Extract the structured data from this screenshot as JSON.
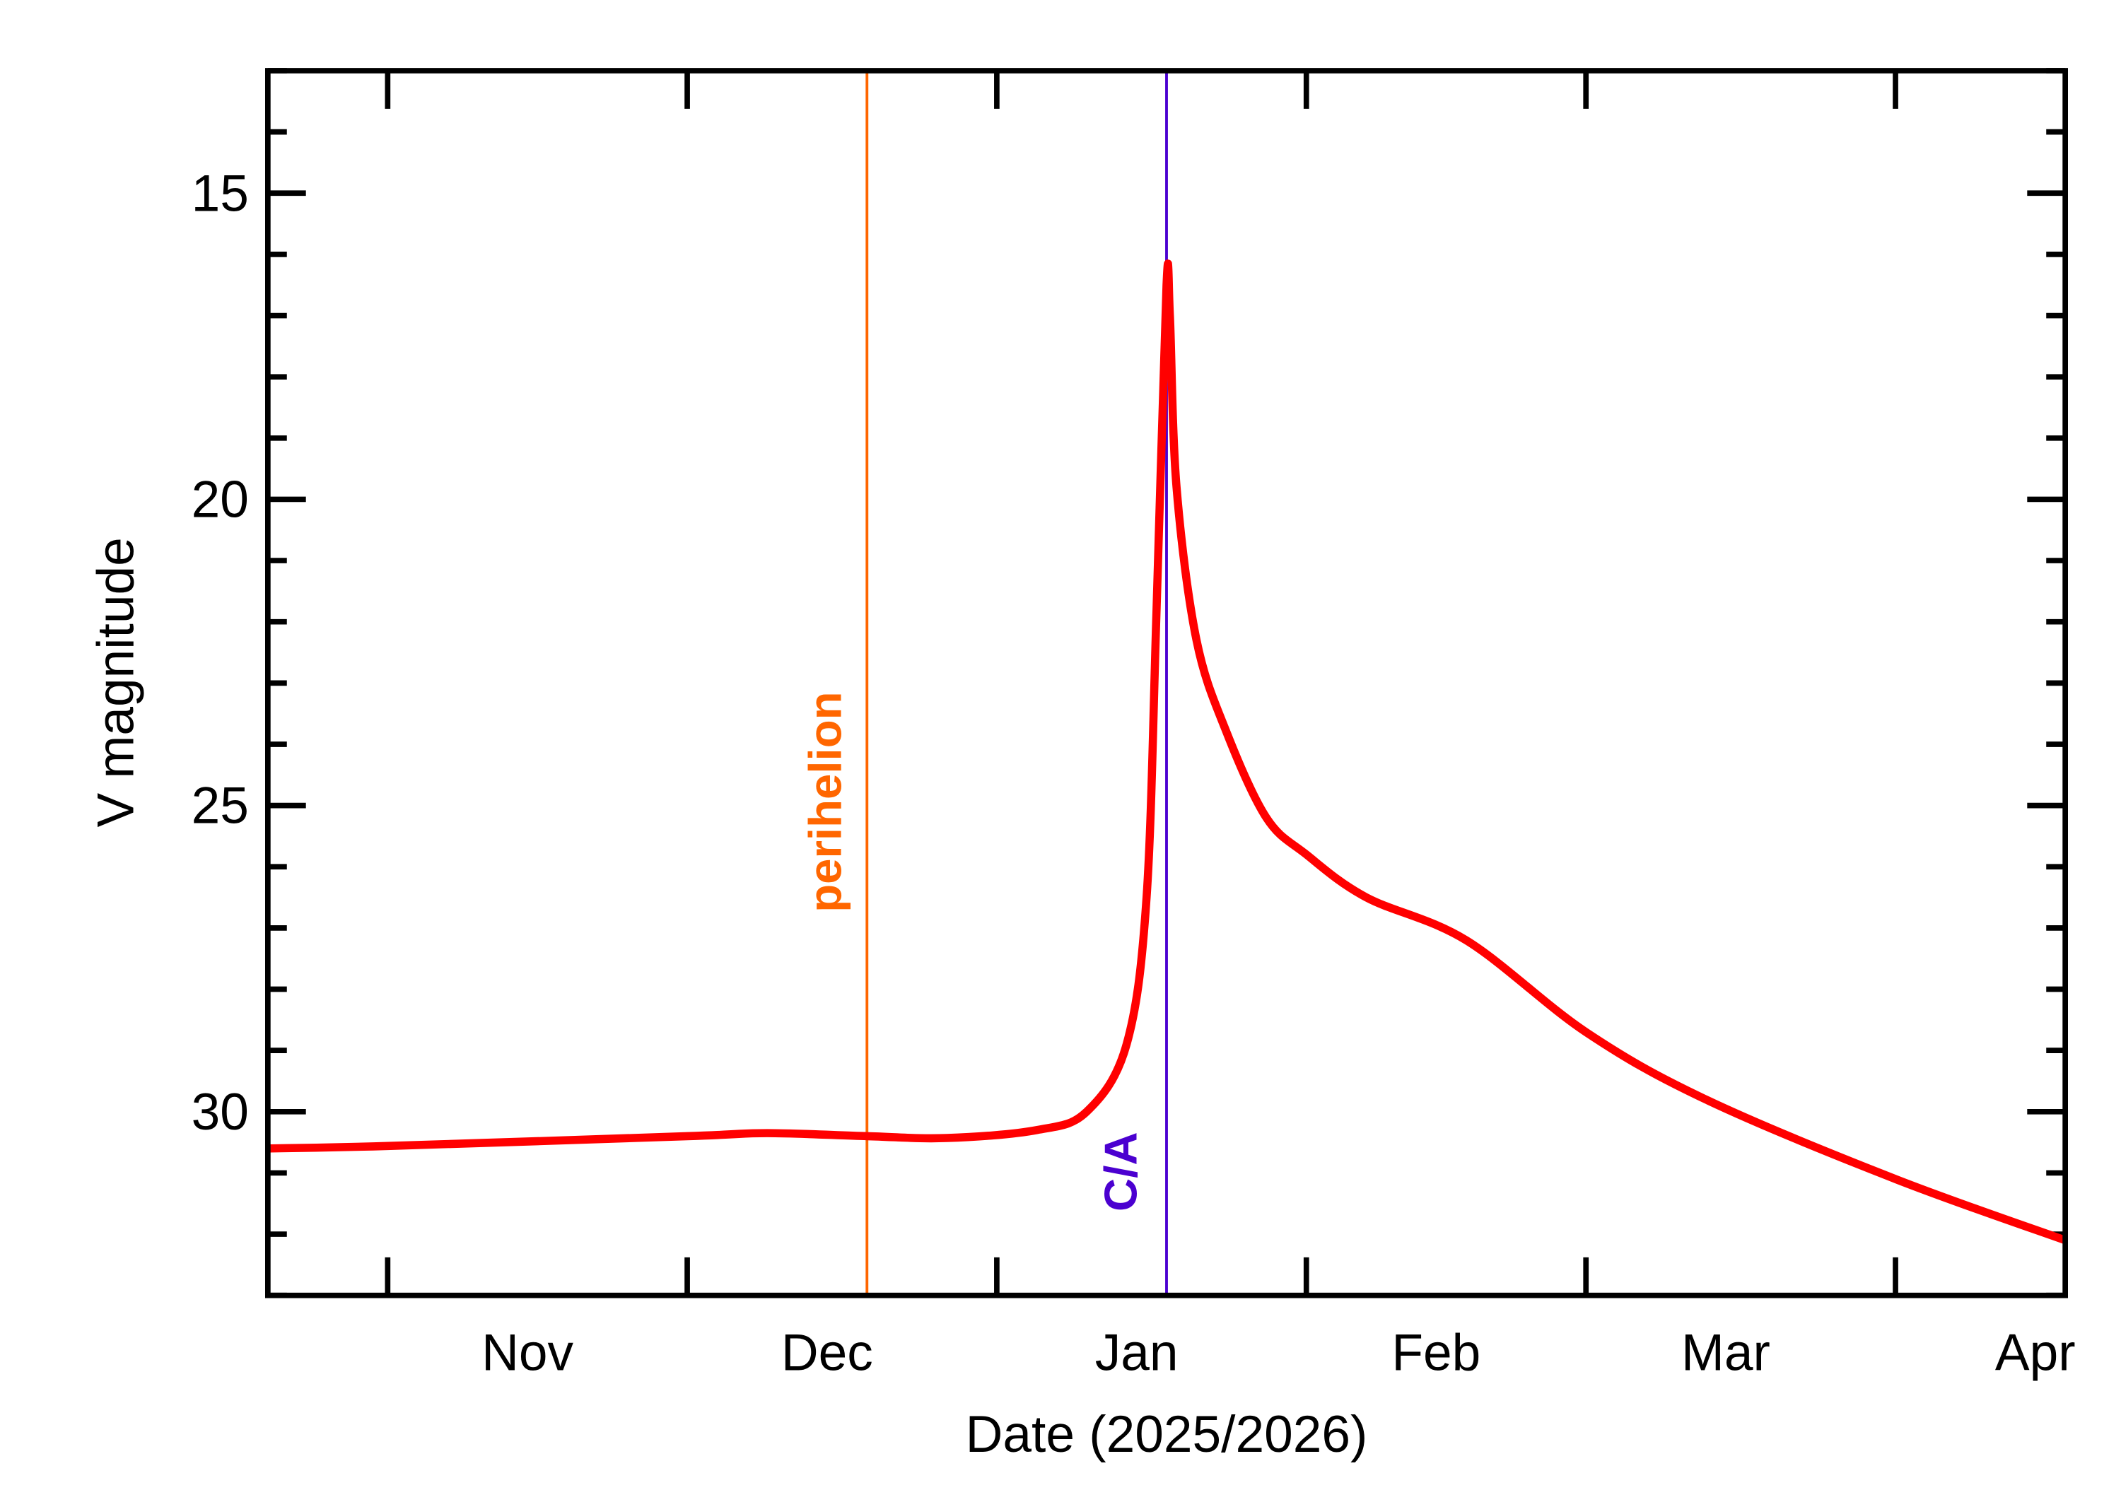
{
  "chart_data": {
    "type": "line",
    "title": "",
    "xlabel": "Date (2025/2026)",
    "ylabel": "V magnitude",
    "xlim": [
      "2025-10-20",
      "2026-04-18"
    ],
    "ylim": [
      33,
      13
    ],
    "y_inverted": true,
    "grid": false,
    "x_ticks": [
      {
        "date": "2025-11-01",
        "label": "Nov",
        "label_date": "2025-11-15"
      },
      {
        "date": "2025-12-01",
        "label": "Dec",
        "label_date": "2025-12-15"
      },
      {
        "date": "2026-01-01",
        "label": "Jan",
        "label_date": "2026-01-15"
      },
      {
        "date": "2026-02-01",
        "label": "Feb",
        "label_date": "2026-02-14"
      },
      {
        "date": "2026-03-01",
        "label": "Mar",
        "label_date": "2026-03-15"
      },
      {
        "date": "2026-04-01",
        "label": "Apr",
        "label_date": "2026-04-15"
      }
    ],
    "y_ticks": [
      15,
      20,
      25,
      30
    ],
    "y_minor_step": 1,
    "colors": {
      "curve": "#ff0000",
      "perihelion": "#ff6600",
      "closest_approach": "#4b00d0",
      "axes": "#000000"
    },
    "series": [
      {
        "points": [
          [
            "2025-10-20",
            30.6
          ],
          [
            "2025-11-01",
            30.56
          ],
          [
            "2025-12-01",
            30.4
          ],
          [
            "2025-12-09",
            30.35
          ],
          [
            "2025-12-19",
            30.4
          ],
          [
            "2025-12-27",
            30.43
          ],
          [
            "2026-01-05",
            30.3
          ],
          [
            "2026-01-10",
            30.0
          ],
          [
            "2026-01-14",
            28.9
          ],
          [
            "2026-01-16",
            26.5
          ],
          [
            "2026-01-17",
            21.8
          ],
          [
            "2026-01-18",
            16.5
          ],
          [
            "2026-01-18T08:00",
            17.0
          ],
          [
            "2026-01-19",
            19.8
          ],
          [
            "2026-01-21",
            22.3
          ],
          [
            "2026-01-24",
            23.8
          ],
          [
            "2026-01-28",
            25.2
          ],
          [
            "2026-02-01",
            25.8
          ],
          [
            "2026-02-07",
            26.5
          ],
          [
            "2026-02-17",
            27.2
          ],
          [
            "2026-03-01",
            28.7
          ],
          [
            "2026-03-13",
            29.8
          ],
          [
            "2026-04-01",
            31.1
          ],
          [
            "2026-04-18",
            32.1
          ]
        ]
      }
    ],
    "annotations": [
      {
        "label": "perihelion",
        "date": "2025-12-19",
        "type": "vertical-line"
      },
      {
        "label": "C/A",
        "date": "2026-01-18",
        "type": "vertical-line"
      }
    ]
  }
}
